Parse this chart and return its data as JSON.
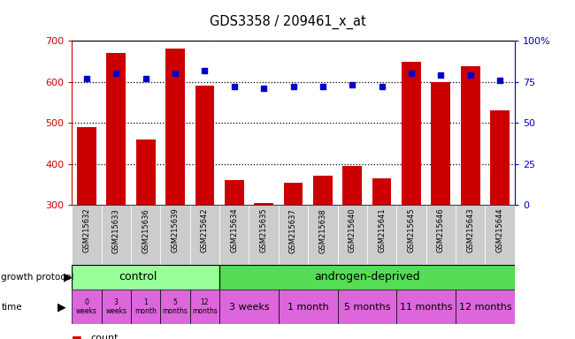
{
  "title": "GDS3358 / 209461_x_at",
  "samples": [
    "GSM215632",
    "GSM215633",
    "GSM215636",
    "GSM215639",
    "GSM215642",
    "GSM215634",
    "GSM215635",
    "GSM215637",
    "GSM215638",
    "GSM215640",
    "GSM215641",
    "GSM215645",
    "GSM215646",
    "GSM215643",
    "GSM215644"
  ],
  "counts": [
    490,
    670,
    460,
    680,
    590,
    360,
    305,
    355,
    372,
    395,
    365,
    648,
    600,
    638,
    530
  ],
  "percentile": [
    77,
    80,
    77,
    80,
    82,
    72,
    71,
    72,
    72,
    73,
    72,
    80,
    79,
    79,
    76
  ],
  "y_min": 300,
  "y_max": 700,
  "y_ticks": [
    300,
    400,
    500,
    600,
    700
  ],
  "y_right_ticks": [
    0,
    25,
    50,
    75,
    100
  ],
  "y_right_tick_labels": [
    "0",
    "25",
    "50",
    "75",
    "100%"
  ],
  "bar_color": "#cc0000",
  "dot_color": "#0000cc",
  "control_color": "#99ff99",
  "androgen_color": "#55dd55",
  "time_color": "#dd66dd",
  "time_color_light": "#ee88ee"
}
